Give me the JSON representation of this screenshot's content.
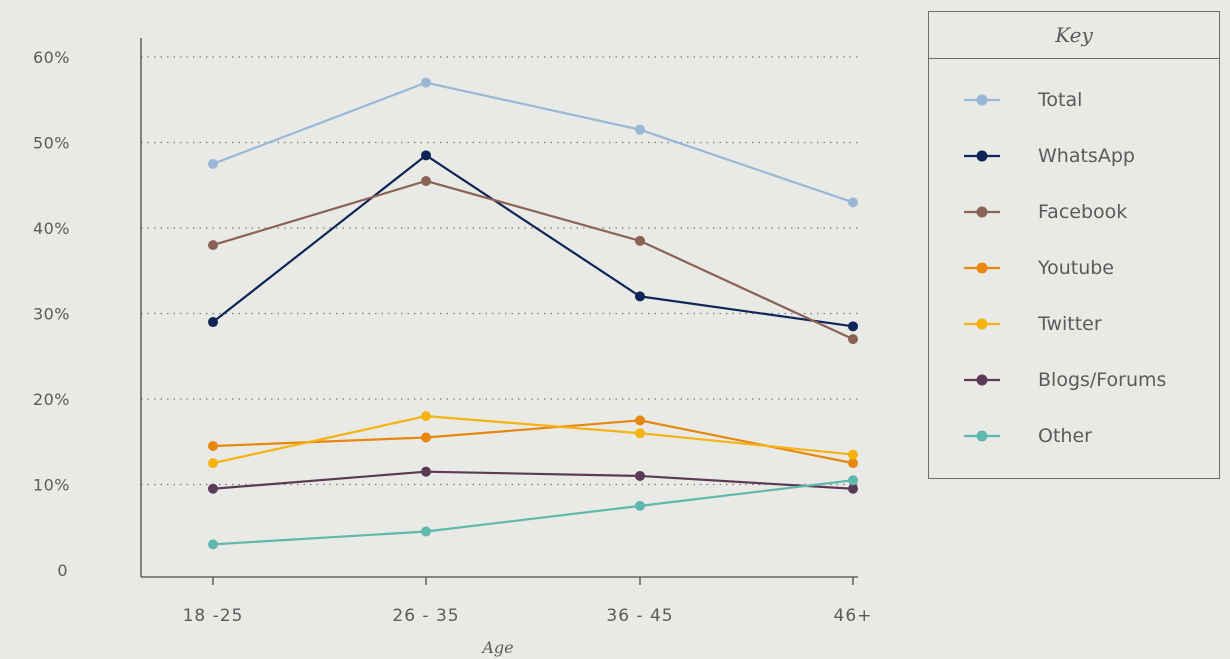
{
  "chart_data": {
    "type": "line",
    "xlabel": "Age",
    "ylabel": "",
    "categories": [
      "18 -25",
      "26 - 35",
      "36 - 45",
      "46+"
    ],
    "ylim": [
      0,
      60
    ],
    "yticks": [
      {
        "value": 0,
        "label": "0"
      },
      {
        "value": 10,
        "label": "10%"
      },
      {
        "value": 20,
        "label": "20%"
      },
      {
        "value": 30,
        "label": "30%"
      },
      {
        "value": 40,
        "label": "40%"
      },
      {
        "value": 50,
        "label": "50%"
      },
      {
        "value": 60,
        "label": "60%"
      }
    ],
    "grid": "dotted horizontal",
    "legend": {
      "title": "Key",
      "placement": "right"
    },
    "series": [
      {
        "name": "Total",
        "color": "#9ab8d6",
        "values": [
          47.5,
          57,
          51.5,
          43
        ]
      },
      {
        "name": "WhatsApp",
        "color": "#0f2557",
        "values": [
          29,
          48.5,
          32,
          28.5
        ]
      },
      {
        "name": "Facebook",
        "color": "#8b6256",
        "values": [
          38,
          45.5,
          38.5,
          27
        ]
      },
      {
        "name": "Youtube",
        "color": "#e8870e",
        "values": [
          14.5,
          15.5,
          17.5,
          12.5
        ]
      },
      {
        "name": "Twitter",
        "color": "#f5b30f",
        "values": [
          12.5,
          18,
          16,
          13.5
        ]
      },
      {
        "name": "Blogs/Forums",
        "color": "#5b3a55",
        "values": [
          9.5,
          11.5,
          11,
          9.5
        ]
      },
      {
        "name": "Other",
        "color": "#5fb8ad",
        "values": [
          3,
          4.5,
          7.5,
          10.5
        ]
      }
    ]
  }
}
